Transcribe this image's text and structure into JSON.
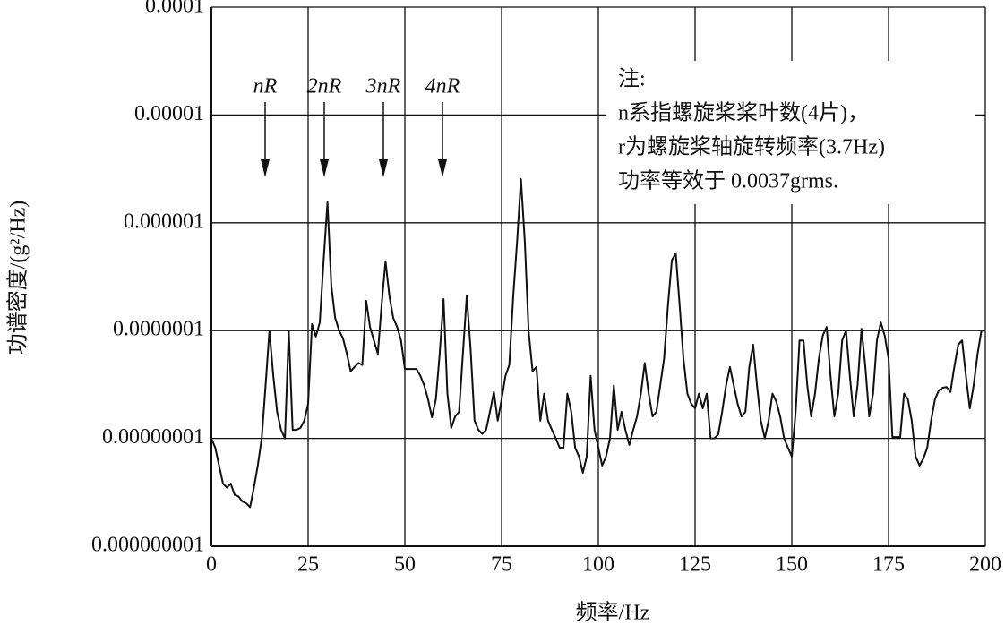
{
  "chart_data": {
    "type": "line",
    "xlabel": "频率/Hz",
    "ylabel": "功谱密度/(g²/Hz)",
    "annotations": [
      "nR",
      "2nR",
      "3nR",
      "4nR"
    ],
    "note": [
      "注:",
      "n系指螺旋桨桨叶数(4片)，",
      "r为螺旋桨轴旋转频率(3.7Hz)",
      "功率等效于 0.0037grms."
    ],
    "ylog": true,
    "grid": true,
    "xlim": [
      0,
      200
    ],
    "xticks": [
      0,
      25,
      50,
      75,
      100,
      125,
      150,
      175,
      200
    ],
    "ylim": [
      1e-09,
      0.0001
    ],
    "yticks": [
      0.0001,
      1e-05,
      1e-06,
      {
        "value": 1e-07,
        "label": "0.0000001"
      },
      {
        "value": 1e-08,
        "label": "0.00000001"
      },
      {
        "value": 1e-09,
        "label": "0.000000001"
      }
    ],
    "x": [
      0,
      1,
      2,
      3,
      4,
      5,
      6,
      7,
      8,
      9,
      10,
      11,
      12,
      13,
      14,
      15,
      16,
      17,
      18,
      19,
      20,
      21,
      22,
      23,
      24,
      25,
      26,
      27,
      28,
      29,
      30,
      31,
      32,
      33,
      34,
      35,
      36,
      37,
      38,
      39,
      40,
      41,
      42,
      43,
      44,
      45,
      46,
      47,
      48,
      49,
      50,
      51,
      52,
      53,
      54,
      55,
      56,
      57,
      58,
      59,
      60,
      61,
      62,
      63,
      64,
      65,
      66,
      67,
      68,
      69,
      70,
      71,
      72,
      73,
      74,
      75,
      76,
      77,
      78,
      79,
      80,
      81,
      82,
      83,
      84,
      85,
      86,
      87,
      88,
      89,
      90,
      91,
      92,
      93,
      94,
      95,
      96,
      97,
      98,
      99,
      100,
      101,
      102,
      103,
      104,
      105,
      106,
      107,
      108,
      109,
      110,
      111,
      112,
      113,
      114,
      115,
      116,
      117,
      118,
      119,
      120,
      121,
      122,
      123,
      124,
      125,
      126,
      127,
      128,
      129,
      130,
      131,
      132,
      133,
      134,
      135,
      136,
      137,
      138,
      139,
      140,
      141,
      142,
      143,
      144,
      145,
      146,
      147,
      148,
      149,
      150,
      151,
      152,
      153,
      154,
      155,
      156,
      157,
      158,
      159,
      160,
      161,
      162,
      163,
      164,
      165,
      166,
      167,
      168,
      169,
      170,
      171,
      172,
      173,
      174,
      175,
      176,
      177,
      178,
      179,
      180,
      181,
      182,
      183,
      184,
      185,
      186,
      187,
      188,
      189,
      190,
      191,
      192,
      193,
      194,
      195,
      196,
      197,
      198,
      199,
      200
    ],
    "series": [
      {
        "color": "#111111",
        "values": [
          1e-08,
          8.2e-09,
          5.6e-09,
          3.8e-09,
          3.5e-09,
          3.8e-09,
          3e-09,
          2.9e-09,
          2.6e-09,
          2.5e-09,
          2.3e-09,
          3.5e-09,
          5.6e-09,
          1e-08,
          3.1e-08,
          1e-07,
          3.8e-08,
          1.76e-08,
          1.2e-08,
          1e-08,
          1e-07,
          1.2e-08,
          1.2e-08,
          1.25e-08,
          1.46e-08,
          2.1e-08,
          1.15e-07,
          8.8e-08,
          1.19e-07,
          4.5e-07,
          1.55e-06,
          2.6e-07,
          1.31e-07,
          1e-07,
          8.5e-08,
          6.1e-08,
          4.2e-08,
          4.6e-08,
          5e-08,
          4.8e-08,
          1.89e-07,
          1.08e-07,
          8.1e-08,
          6.1e-08,
          1.75e-07,
          4.4e-07,
          2.1e-07,
          1.31e-07,
          1.08e-07,
          8.1e-08,
          4.4e-08,
          4.4e-08,
          4.4e-08,
          4.4e-08,
          3.8e-08,
          3.1e-08,
          2.3e-08,
          1.57e-08,
          2.3e-08,
          6.1e-08,
          1.96e-07,
          2.6e-08,
          1.25e-08,
          1.6e-08,
          1.76e-08,
          6.1e-08,
          2.1e-07,
          6.7e-08,
          1.46e-08,
          1.2e-08,
          1.1e-08,
          1.2e-08,
          1.76e-08,
          2.7e-08,
          1.46e-08,
          2.3e-08,
          3.8e-08,
          4.8e-08,
          2.1e-07,
          6.7e-07,
          2.54e-06,
          6.7e-07,
          9.8e-08,
          4.2e-08,
          4.6e-08,
          1.46e-08,
          2.6e-08,
          1.46e-08,
          1.2e-08,
          1e-08,
          8.2e-09,
          8.2e-09,
          2.6e-08,
          1.76e-08,
          8.2e-09,
          6.8e-09,
          4.8e-09,
          6.8e-09,
          3.8e-08,
          1.2e-08,
          8.2e-09,
          5.6e-09,
          6.8e-09,
          1e-08,
          3.1e-08,
          1.2e-08,
          1.76e-08,
          1.2e-08,
          8.7e-09,
          1.2e-08,
          1.6e-08,
          2.6e-08,
          5e-08,
          2.6e-08,
          1.6e-08,
          1.76e-08,
          3.1e-08,
          5.5e-08,
          1.75e-07,
          4.5e-07,
          5.2e-07,
          1.75e-07,
          5.5e-08,
          2.6e-08,
          2.1e-08,
          1.9e-08,
          2.6e-08,
          1.9e-08,
          2.6e-08,
          1e-08,
          1e-08,
          1.09e-08,
          1.76e-08,
          3.1e-08,
          4.6e-08,
          3.1e-08,
          2.1e-08,
          1.6e-08,
          1.76e-08,
          4.6e-08,
          7.4e-08,
          3.1e-08,
          1.46e-08,
          1e-08,
          1.46e-08,
          2.6e-08,
          2.2e-08,
          1.6e-08,
          1e-08,
          8.2e-09,
          6.8e-09,
          1.76e-08,
          8.1e-08,
          8.1e-08,
          3.1e-08,
          1.6e-08,
          2.6e-08,
          5.5e-08,
          9e-08,
          1.08e-07,
          3.8e-08,
          1.6e-08,
          2.6e-08,
          8.1e-08,
          1e-07,
          3.8e-08,
          1.6e-08,
          3.1e-08,
          1.04e-07,
          4.6e-08,
          1.6e-08,
          2.6e-08,
          8.1e-08,
          1.19e-07,
          9e-08,
          5.5e-08,
          1.03e-08,
          1.03e-08,
          1.03e-08,
          2.6e-08,
          2.3e-08,
          1.46e-08,
          6.8e-09,
          5.6e-09,
          6.5e-09,
          8.2e-09,
          1.46e-08,
          2.3e-08,
          2.8e-08,
          2.95e-08,
          3e-08,
          2.7e-08,
          4.6e-08,
          7.4e-08,
          8.1e-08,
          3.8e-08,
          1.9e-08,
          3.1e-08,
          6.1e-08,
          1e-07,
          1e-07
        ]
      }
    ]
  }
}
